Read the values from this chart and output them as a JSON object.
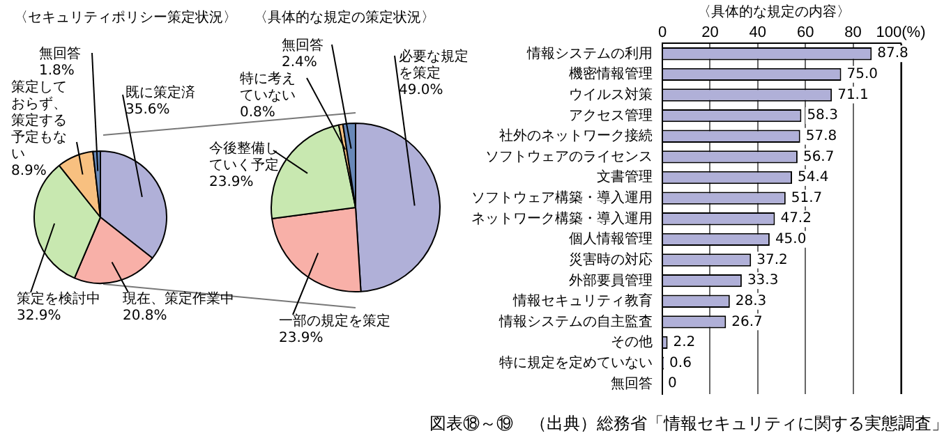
{
  "chart_data": [
    {
      "type": "pie",
      "title": "〈セキュリティポリシー策定状況〉",
      "categories": [
        "既に策定済",
        "現在、策定作業中",
        "策定を検討中",
        "策定しておらず、策定する予定もない",
        "無回答"
      ],
      "values": [
        35.6,
        20.8,
        32.9,
        8.9,
        1.8
      ],
      "colors": [
        "#b0b0d8",
        "#f8b0a8",
        "#c8e8b0",
        "#f8c080",
        "#6888b8"
      ],
      "value_labels": [
        "35.6%",
        "20.8%",
        "32.9%",
        "8.9%",
        "1.8%"
      ]
    },
    {
      "type": "pie",
      "title": "〈具体的な規定の策定状況〉",
      "categories": [
        "必要な規定を策定",
        "一部の規定を策定",
        "今後整備していく予定",
        "特に考えていない",
        "無回答"
      ],
      "values": [
        49.0,
        23.9,
        23.9,
        0.8,
        2.4
      ],
      "colors": [
        "#b0b0d8",
        "#f8b0a8",
        "#c8e8b0",
        "#f8c080",
        "#6888b8"
      ],
      "value_labels": [
        "49.0%",
        "23.9%",
        "23.9%",
        "0.8%",
        "2.4%"
      ]
    },
    {
      "type": "bar",
      "orientation": "horizontal",
      "title": "〈具体的な規定の内容〉",
      "categories": [
        "情報システムの利用",
        "機密情報管理",
        "ウイルス対策",
        "アクセス管理",
        "社外のネットワーク接続",
        "ソフトウェアのライセンス",
        "文書管理",
        "ソフトウェア構築・導入運用",
        "ネットワーク構築・導入運用",
        "個人情報管理",
        "災害時の対応",
        "外部要員管理",
        "情報セキュリティ教育",
        "情報システムの自主監査",
        "その他",
        "特に規定を定めていない",
        "無回答"
      ],
      "values": [
        87.8,
        75.0,
        71.1,
        58.3,
        57.8,
        56.7,
        54.4,
        51.7,
        47.2,
        45.0,
        37.2,
        33.3,
        28.3,
        26.7,
        2.2,
        0.6,
        0
      ],
      "value_labels": [
        "87.8",
        "75.0",
        "71.1",
        "58.3",
        "57.8",
        "56.7",
        "54.4",
        "51.7",
        "47.2",
        "45.0",
        "37.2",
        "33.3",
        "28.3",
        "26.7",
        "2.2",
        "0.6",
        "0"
      ],
      "color": "#b0b0d8",
      "xlim": [
        0,
        100
      ],
      "xticks": [
        0,
        20,
        40,
        60,
        80,
        {
          "value": 100,
          "label": "100(%)"
        }
      ],
      "grid": "x",
      "legend": false,
      "annotations": [
        "図表⑱～⑲　（出典）総務省「情報セキュリティに関する実態調査」"
      ]
    }
  ]
}
